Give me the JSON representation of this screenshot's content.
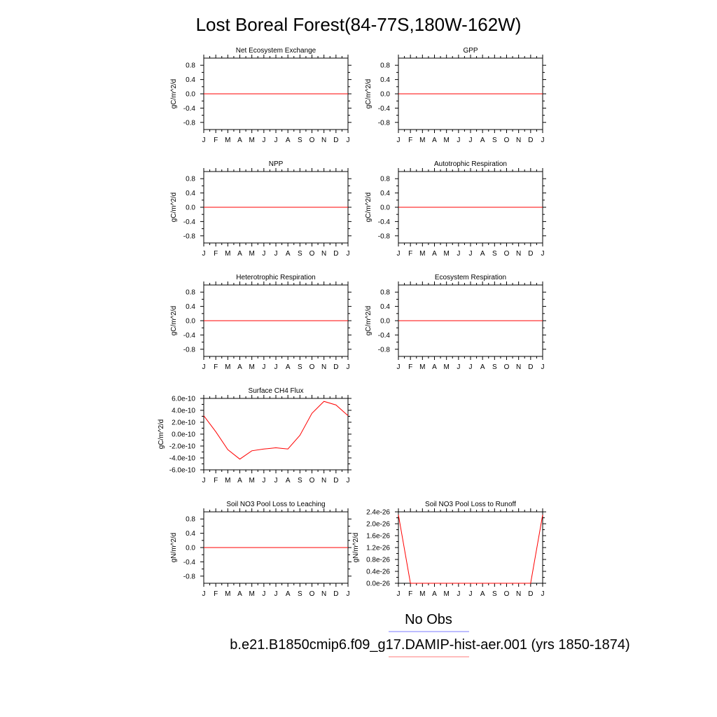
{
  "figure": {
    "title": "Lost Boreal Forest(84-77S,180W-162W)",
    "legend": {
      "obs_label": "No Obs",
      "obs_color": "#7b7bff",
      "model_label": "b.e21.B1850cmip6.f09_g17.DAMIP-hist-aer.001 (yrs 1850-1874)",
      "model_color": "#ff7b7b"
    },
    "line_color": "#ff0000"
  },
  "chart_data": [
    {
      "type": "line",
      "title": "Net Ecosystem Exchange",
      "ylabel": "gC/m^2/d",
      "categories": [
        "J",
        "F",
        "M",
        "A",
        "M",
        "J",
        "J",
        "A",
        "S",
        "O",
        "N",
        "D",
        "J"
      ],
      "yticks": [
        "0.8",
        "0.4",
        "0.0",
        "-0.4",
        "-0.8"
      ],
      "ylim": [
        -1.0,
        1.0
      ],
      "series": [
        {
          "values": [
            0,
            0,
            0,
            0,
            0,
            0,
            0,
            0,
            0,
            0,
            0,
            0,
            0
          ]
        }
      ]
    },
    {
      "type": "line",
      "title": "GPP",
      "ylabel": "gC/m^2/d",
      "categories": [
        "J",
        "F",
        "M",
        "A",
        "M",
        "J",
        "J",
        "A",
        "S",
        "O",
        "N",
        "D",
        "J"
      ],
      "yticks": [
        "0.8",
        "0.4",
        "0.0",
        "-0.4",
        "-0.8"
      ],
      "ylim": [
        -1.0,
        1.0
      ],
      "series": [
        {
          "values": [
            0,
            0,
            0,
            0,
            0,
            0,
            0,
            0,
            0,
            0,
            0,
            0,
            0
          ]
        }
      ]
    },
    {
      "type": "line",
      "title": "NPP",
      "ylabel": "gC/m^2/d",
      "categories": [
        "J",
        "F",
        "M",
        "A",
        "M",
        "J",
        "J",
        "A",
        "S",
        "O",
        "N",
        "D",
        "J"
      ],
      "yticks": [
        "0.8",
        "0.4",
        "0.0",
        "-0.4",
        "-0.8"
      ],
      "ylim": [
        -1.0,
        1.0
      ],
      "series": [
        {
          "values": [
            0,
            0,
            0,
            0,
            0,
            0,
            0,
            0,
            0,
            0,
            0,
            0,
            0
          ]
        }
      ]
    },
    {
      "type": "line",
      "title": "Autotrophic Respiration",
      "ylabel": "gC/m^2/d",
      "categories": [
        "J",
        "F",
        "M",
        "A",
        "M",
        "J",
        "J",
        "A",
        "S",
        "O",
        "N",
        "D",
        "J"
      ],
      "yticks": [
        "0.8",
        "0.4",
        "0.0",
        "-0.4",
        "-0.8"
      ],
      "ylim": [
        -1.0,
        1.0
      ],
      "series": [
        {
          "values": [
            0,
            0,
            0,
            0,
            0,
            0,
            0,
            0,
            0,
            0,
            0,
            0,
            0
          ]
        }
      ]
    },
    {
      "type": "line",
      "title": "Heterotrophic Respiration",
      "ylabel": "gC/m^2/d",
      "categories": [
        "J",
        "F",
        "M",
        "A",
        "M",
        "J",
        "J",
        "A",
        "S",
        "O",
        "N",
        "D",
        "J"
      ],
      "yticks": [
        "0.8",
        "0.4",
        "0.0",
        "-0.4",
        "-0.8"
      ],
      "ylim": [
        -1.0,
        1.0
      ],
      "series": [
        {
          "values": [
            0,
            0,
            0,
            0,
            0,
            0,
            0,
            0,
            0,
            0,
            0,
            0,
            0
          ]
        }
      ]
    },
    {
      "type": "line",
      "title": "Ecosystem Respiration",
      "ylabel": "gC/m^2/d",
      "categories": [
        "J",
        "F",
        "M",
        "A",
        "M",
        "J",
        "J",
        "A",
        "S",
        "O",
        "N",
        "D",
        "J"
      ],
      "yticks": [
        "0.8",
        "0.4",
        "0.0",
        "-0.4",
        "-0.8"
      ],
      "ylim": [
        -1.0,
        1.0
      ],
      "series": [
        {
          "values": [
            0,
            0,
            0,
            0,
            0,
            0,
            0,
            0,
            0,
            0,
            0,
            0,
            0
          ]
        }
      ]
    },
    {
      "type": "line",
      "title": "Surface CH4 Flux",
      "ylabel": "gC/m^2/d",
      "categories": [
        "J",
        "F",
        "M",
        "A",
        "M",
        "J",
        "J",
        "A",
        "S",
        "O",
        "N",
        "D",
        "J"
      ],
      "yticks": [
        "6.0e-10",
        "4.0e-10",
        "2.0e-10",
        "0.0e-10",
        "-2.0e-10",
        "-4.0e-10",
        "-6.0e-10"
      ],
      "ylim": [
        -6e-10,
        6e-10
      ],
      "series": [
        {
          "values": [
            3.1e-10,
            4e-11,
            -2.6e-10,
            -4.2e-10,
            -2.8e-10,
            -2.5e-10,
            -2.3e-10,
            -2.5e-10,
            -2e-11,
            3.5e-10,
            5.5e-10,
            4.9e-10,
            3.1e-10
          ]
        }
      ]
    },
    {
      "type": "line",
      "title": "Soil NO3 Pool Loss to Leaching",
      "ylabel": "gN/m^2/d",
      "categories": [
        "J",
        "F",
        "M",
        "A",
        "M",
        "J",
        "J",
        "A",
        "S",
        "O",
        "N",
        "D",
        "J"
      ],
      "yticks": [
        "0.8",
        "0.4",
        "0.0",
        "-0.4",
        "-0.8"
      ],
      "ylim": [
        -1.0,
        1.0
      ],
      "series": [
        {
          "values": [
            0,
            0,
            0,
            0,
            0,
            0,
            0,
            0,
            0,
            0,
            0,
            0,
            0
          ]
        }
      ]
    },
    {
      "type": "line",
      "title": "Soil NO3 Pool Loss to Runoff",
      "ylabel": "gN/m^2/d",
      "categories": [
        "J",
        "F",
        "M",
        "A",
        "M",
        "J",
        "J",
        "A",
        "S",
        "O",
        "N",
        "D",
        "J"
      ],
      "yticks": [
        "2.4e-26",
        "2.0e-26",
        "1.6e-26",
        "1.2e-26",
        "0.8e-26",
        "0.4e-26",
        "0.0e-26"
      ],
      "ylim": [
        0,
        2.4e-26
      ],
      "series": [
        {
          "values": [
            2.3e-26,
            0,
            0,
            0,
            0,
            0,
            0,
            0,
            0,
            0,
            0,
            0,
            2.3e-26
          ]
        }
      ]
    }
  ]
}
